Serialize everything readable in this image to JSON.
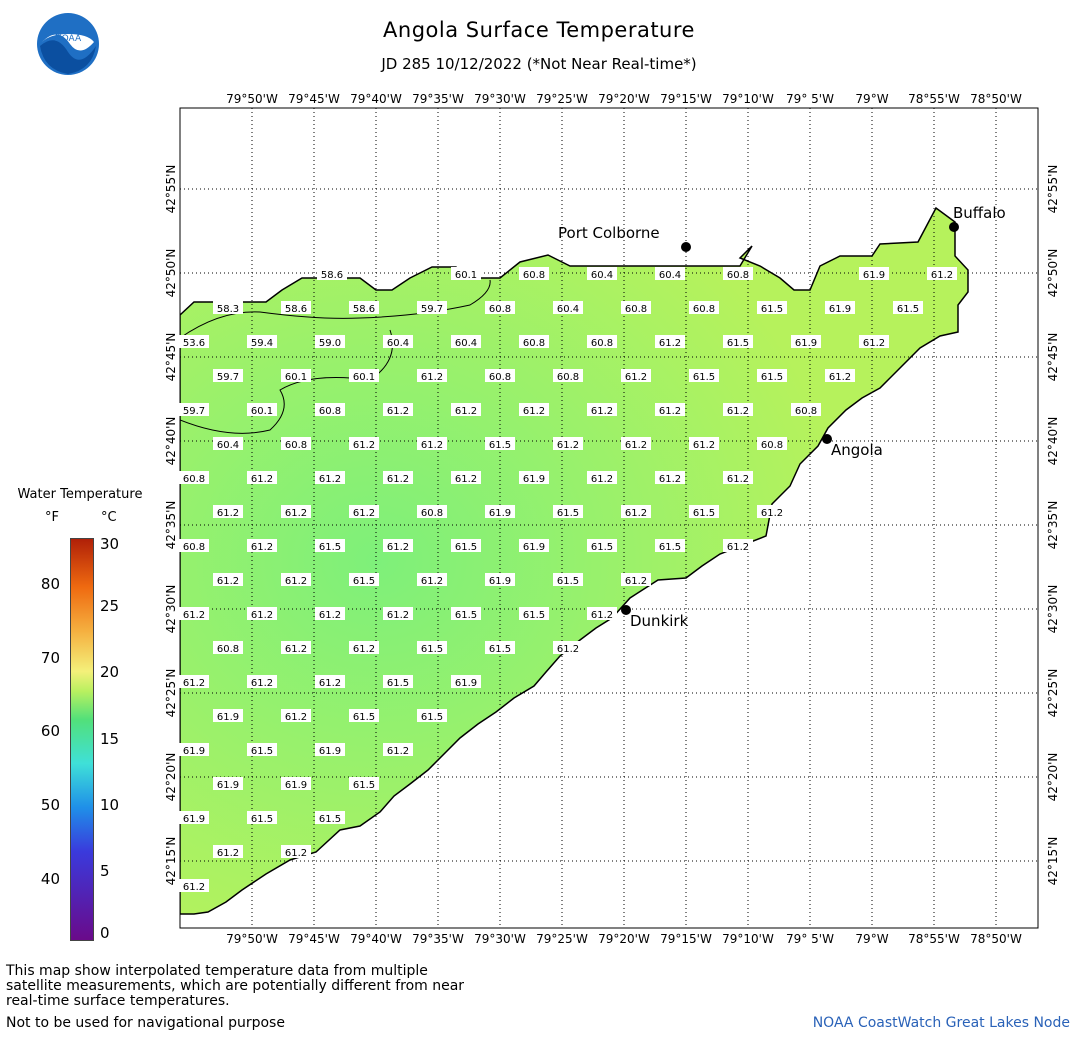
{
  "header": {
    "title": "Angola Surface Temperature",
    "subtitle": "JD 285 10/12/2022 (*Not Near Real-time*)"
  },
  "logo": {
    "text": "NOAA"
  },
  "map": {
    "lon_labels": [
      "79°50'W",
      "79°45'W",
      "79°40'W",
      "79°35'W",
      "79°30'W",
      "79°25'W",
      "79°20'W",
      "79°15'W",
      "79°10'W",
      "79° 5'W",
      "79°W",
      "78°55'W",
      "78°50'W"
    ],
    "lat_labels": [
      "42°55'N",
      "42°50'N",
      "42°45'N",
      "42°40'N",
      "42°35'N",
      "42°30'N",
      "42°25'N",
      "42°20'N",
      "42°15'N"
    ],
    "places": [
      "Buffalo",
      "Port Colborne",
      "Angola",
      "Dunkirk"
    ],
    "temperature_rows": [
      [
        "58.6",
        "60.1",
        "60.8",
        "60.4",
        "60.4",
        "60.8",
        "61.9",
        "61.2"
      ],
      [
        "58.3",
        "58.6",
        "58.6",
        "59.7",
        "60.8",
        "60.4",
        "60.8",
        "60.8",
        "61.5",
        "61.9",
        "61.5"
      ],
      [
        "53.6",
        "59.4",
        "59.0",
        "60.4",
        "60.4",
        "60.8",
        "60.8",
        "61.2",
        "61.5",
        "61.9",
        "61.2"
      ],
      [
        "59.7",
        "60.1",
        "60.1",
        "61.2",
        "60.8",
        "60.8",
        "61.2",
        "61.5",
        "61.5",
        "61.2"
      ],
      [
        "59.7",
        "60.1",
        "60.8",
        "61.2",
        "61.2",
        "61.2",
        "61.2",
        "61.2",
        "61.2",
        "60.8"
      ],
      [
        "60.4",
        "60.8",
        "61.2",
        "61.2",
        "61.5",
        "61.2",
        "61.2",
        "61.2",
        "60.8"
      ],
      [
        "60.8",
        "61.2",
        "61.2",
        "61.2",
        "61.2",
        "61.9",
        "61.2",
        "61.2",
        "61.2"
      ],
      [
        "61.2",
        "61.2",
        "61.2",
        "60.8",
        "61.9",
        "61.5",
        "61.2",
        "61.5",
        "61.2"
      ],
      [
        "60.8",
        "61.2",
        "61.5",
        "61.2",
        "61.5",
        "61.9",
        "61.5",
        "61.5",
        "61.2"
      ],
      [
        "61.2",
        "61.2",
        "61.5",
        "61.2",
        "61.9",
        "61.5",
        "61.2"
      ],
      [
        "61.2",
        "61.2",
        "61.2",
        "61.2",
        "61.5",
        "61.5",
        "61.2"
      ],
      [
        "60.8",
        "61.2",
        "61.2",
        "61.5",
        "61.5",
        "61.2"
      ],
      [
        "61.2",
        "61.2",
        "61.2",
        "61.5",
        "61.9"
      ],
      [
        "61.9",
        "61.2",
        "61.5",
        "61.5"
      ],
      [
        "61.9",
        "61.5",
        "61.9",
        "61.2"
      ],
      [
        "61.9",
        "61.9",
        "61.5"
      ],
      [
        "61.9",
        "61.5",
        "61.5"
      ],
      [
        "61.2",
        "61.2"
      ],
      [
        "61.2"
      ]
    ]
  },
  "legend": {
    "title": "Water Temperature",
    "f_unit": "°F",
    "c_unit": "°C",
    "f_ticks": [
      "80",
      "70",
      "60",
      "50",
      "40"
    ],
    "c_ticks": [
      "30",
      "25",
      "20",
      "15",
      "10",
      "5",
      "0"
    ]
  },
  "footer": {
    "note": "This map show interpolated temperature data from multiple satellite measurements, which are potentially different from near real-time surface temperatures.",
    "nav_note": "Not to be used for navigational purpose",
    "credit": "NOAA CoastWatch Great Lakes Node"
  },
  "colors": {
    "water": "#b6f25c",
    "water_cool": "#7ef07a",
    "logo_blue": "#1f6fc4",
    "credit": "#2a62b8"
  }
}
